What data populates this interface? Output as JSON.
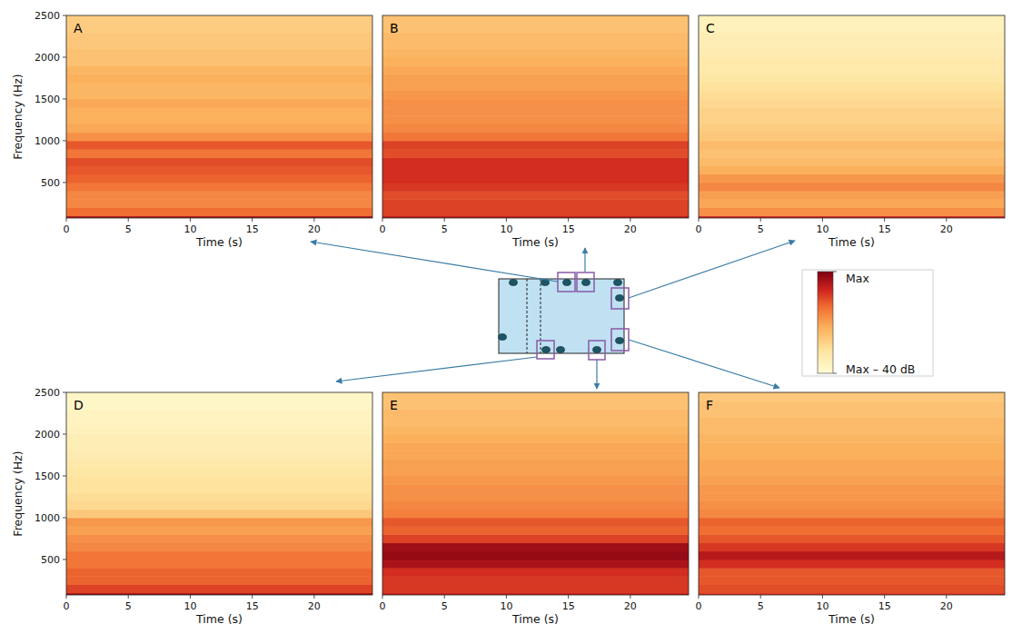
{
  "chart_data": [
    {
      "type": "heatmap",
      "title": "A",
      "x_label": "Time (s)",
      "y_label": "Frequency (Hz)",
      "xlim": [
        0,
        24.7
      ],
      "ylim": [
        75,
        2500
      ],
      "xticks": [
        0,
        5,
        10,
        15,
        20
      ],
      "yticks": [
        500,
        1000,
        1500,
        2000,
        2500
      ],
      "x_bins": [
        0,
        24.7
      ],
      "y_bins": [
        75,
        100,
        200,
        300,
        400,
        500,
        600,
        700,
        800,
        900,
        1000,
        1100,
        1200,
        1300,
        1400,
        1500,
        1600,
        1700,
        1800,
        1900,
        2000,
        2100,
        2200,
        2300,
        2400,
        2500
      ],
      "cells": [
        [
          -3
        ],
        [
          -14
        ],
        [
          -17
        ],
        [
          -17
        ],
        [
          -15
        ],
        [
          -13
        ],
        [
          -12
        ],
        [
          -11
        ],
        [
          -15
        ],
        [
          -12
        ],
        [
          -18
        ],
        [
          -21
        ],
        [
          -22
        ],
        [
          -22
        ],
        [
          -21
        ],
        [
          -23
        ],
        [
          -23
        ],
        [
          -22
        ],
        [
          -23
        ],
        [
          -25
        ],
        [
          -25
        ],
        [
          -26
        ],
        [
          -26
        ],
        [
          -27
        ],
        [
          -27
        ]
      ]
    },
    {
      "type": "heatmap",
      "title": "B",
      "x_label": "Time (s)",
      "tick_labels": "x",
      "xlim": [
        0,
        24.7
      ],
      "ylim": [
        75,
        2500
      ],
      "xticks": [
        0,
        5,
        10,
        15,
        20
      ],
      "x_bins": [
        0,
        24.7
      ],
      "y_bins": [
        75,
        100,
        200,
        300,
        400,
        500,
        600,
        700,
        800,
        900,
        1000,
        1100,
        1200,
        1300,
        1400,
        1500,
        1600,
        1700,
        1800,
        1900,
        2000,
        2100,
        2200,
        2300,
        2400,
        2500
      ],
      "cells": [
        [
          -5
        ],
        [
          -10
        ],
        [
          -10
        ],
        [
          -11
        ],
        [
          -9
        ],
        [
          -8
        ],
        [
          -8
        ],
        [
          -8
        ],
        [
          -11
        ],
        [
          -10
        ],
        [
          -15
        ],
        [
          -17
        ],
        [
          -18
        ],
        [
          -18
        ],
        [
          -18
        ],
        [
          -19
        ],
        [
          -20
        ],
        [
          -20
        ],
        [
          -21
        ],
        [
          -22
        ],
        [
          -23
        ],
        [
          -24
        ],
        [
          -24
        ],
        [
          -25
        ],
        [
          -25
        ]
      ]
    },
    {
      "type": "heatmap",
      "title": "C",
      "x_label": "Time (s)",
      "tick_labels": "x",
      "xlim": [
        0,
        24.7
      ],
      "ylim": [
        75,
        2500
      ],
      "xticks": [
        0,
        5,
        10,
        15,
        20
      ],
      "x_bins": [
        0,
        24.7
      ],
      "y_bins": [
        75,
        100,
        200,
        300,
        400,
        500,
        600,
        700,
        800,
        900,
        1000,
        1100,
        1200,
        1300,
        1400,
        1500,
        1600,
        1700,
        1800,
        1900,
        2000,
        2100,
        2200,
        2300,
        2400,
        2500
      ],
      "cells": [
        [
          -6
        ],
        [
          -18
        ],
        [
          -21
        ],
        [
          -20
        ],
        [
          -17
        ],
        [
          -19
        ],
        [
          -22
        ],
        [
          -24
        ],
        [
          -25
        ],
        [
          -24
        ],
        [
          -26
        ],
        [
          -27
        ],
        [
          -28
        ],
        [
          -28
        ],
        [
          -29
        ],
        [
          -30
        ],
        [
          -31
        ],
        [
          -32
        ],
        [
          -33
        ],
        [
          -33
        ],
        [
          -34
        ],
        [
          -35
        ],
        [
          -35
        ],
        [
          -36
        ],
        [
          -36
        ]
      ]
    },
    {
      "type": "heatmap",
      "title": "D",
      "x_label": "Time (s)",
      "y_label": "Frequency (Hz)",
      "xlim": [
        0,
        24.7
      ],
      "ylim": [
        75,
        2500
      ],
      "xticks": [
        0,
        5,
        10,
        15,
        20
      ],
      "yticks": [
        500,
        1000,
        1500,
        2000,
        2500
      ],
      "x_bins": [
        0,
        24.7
      ],
      "y_bins": [
        75,
        100,
        200,
        300,
        400,
        500,
        600,
        700,
        800,
        900,
        1000,
        1100,
        1200,
        1300,
        1400,
        1500,
        1600,
        1700,
        1800,
        1900,
        2000,
        2100,
        2200,
        2300,
        2400,
        2500
      ],
      "cells": [
        [
          -3
        ],
        [
          -10
        ],
        [
          -13
        ],
        [
          -13
        ],
        [
          -15
        ],
        [
          -15
        ],
        [
          -17
        ],
        [
          -18
        ],
        [
          -20
        ],
        [
          -19
        ],
        [
          -26
        ],
        [
          -29
        ],
        [
          -30
        ],
        [
          -31
        ],
        [
          -31
        ],
        [
          -32
        ],
        [
          -33
        ],
        [
          -34
        ],
        [
          -35
        ],
        [
          -35
        ],
        [
          -36
        ],
        [
          -37
        ],
        [
          -37
        ],
        [
          -38
        ],
        [
          -38
        ]
      ]
    },
    {
      "type": "heatmap",
      "title": "E",
      "x_label": "Time (s)",
      "tick_labels": "x",
      "xlim": [
        0,
        24.7
      ],
      "ylim": [
        75,
        2500
      ],
      "xticks": [
        0,
        5,
        10,
        15,
        20
      ],
      "x_bins": [
        0,
        24.7
      ],
      "y_bins": [
        75,
        100,
        200,
        300,
        400,
        500,
        600,
        700,
        800,
        900,
        1000,
        1100,
        1200,
        1300,
        1400,
        1500,
        1600,
        1700,
        1800,
        1900,
        2000,
        2100,
        2200,
        2300,
        2400,
        2500
      ],
      "cells": [
        [
          -6
        ],
        [
          -9
        ],
        [
          -9
        ],
        [
          -8
        ],
        [
          -4
        ],
        [
          -2
        ],
        [
          -3
        ],
        [
          -10
        ],
        [
          -13
        ],
        [
          -12
        ],
        [
          -16
        ],
        [
          -17
        ],
        [
          -18
        ],
        [
          -18
        ],
        [
          -19
        ],
        [
          -20
        ],
        [
          -20
        ],
        [
          -21
        ],
        [
          -21
        ],
        [
          -22
        ],
        [
          -23
        ],
        [
          -24
        ],
        [
          -24
        ],
        [
          -25
        ],
        [
          -25
        ]
      ]
    },
    {
      "type": "heatmap",
      "title": "F",
      "x_label": "Time (s)",
      "tick_labels": "x",
      "xlim": [
        0,
        24.7
      ],
      "ylim": [
        75,
        2500
      ],
      "xticks": [
        0,
        5,
        10,
        15,
        20
      ],
      "x_bins": [
        0,
        24.7
      ],
      "y_bins": [
        75,
        100,
        200,
        300,
        400,
        500,
        600,
        700,
        800,
        900,
        1000,
        1100,
        1200,
        1300,
        1400,
        1500,
        1600,
        1700,
        1800,
        1900,
        2000,
        2100,
        2200,
        2300,
        2400,
        2500
      ],
      "cells": [
        [
          -9
        ],
        [
          -11
        ],
        [
          -12
        ],
        [
          -12
        ],
        [
          -8
        ],
        [
          -5
        ],
        [
          -9
        ],
        [
          -12
        ],
        [
          -14
        ],
        [
          -13
        ],
        [
          -17
        ],
        [
          -18
        ],
        [
          -19
        ],
        [
          -19
        ],
        [
          -20
        ],
        [
          -21
        ],
        [
          -21
        ],
        [
          -22
        ],
        [
          -22
        ],
        [
          -23
        ],
        [
          -24
        ],
        [
          -24
        ],
        [
          -25
        ],
        [
          -25
        ],
        [
          -26
        ]
      ]
    }
  ],
  "colorbar": {
    "range": [
      -40,
      0
    ],
    "ticks": [
      {
        "value": 0,
        "label": "Max"
      },
      {
        "value": -40,
        "label": "Max – 40 dB"
      }
    ]
  }
}
